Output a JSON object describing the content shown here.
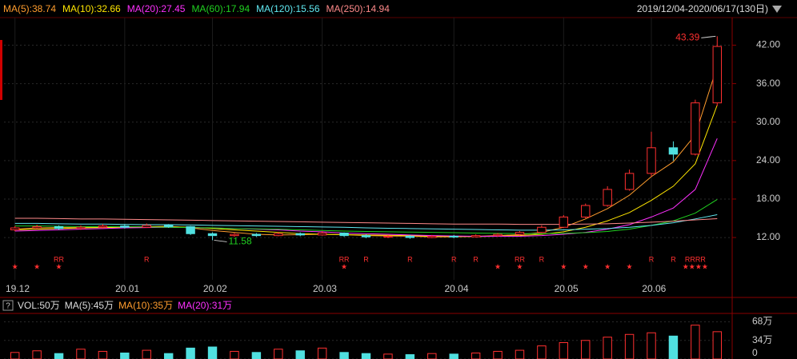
{
  "header": {
    "range": "2019/12/04-2020/06/17(130日)",
    "volume_legend": [
      "VOL:50万",
      "MA(5):45万",
      "MA(10):35万",
      "MA(20):31万"
    ]
  },
  "chart_data": {
    "type": "candlestick",
    "categories": [
      "19.12",
      null,
      null,
      null,
      null,
      "20.01",
      null,
      null,
      null,
      "20.02",
      null,
      null,
      null,
      null,
      "20.03",
      null,
      null,
      null,
      null,
      null,
      "20.04",
      null,
      null,
      null,
      null,
      "20.05",
      null,
      null,
      null,
      "20.06",
      null,
      null,
      null
    ],
    "open": [
      13.2,
      13.5,
      13.7,
      13.4,
      13.6,
      13.8,
      13.6,
      13.9,
      13.7,
      12.6,
      12.3,
      12.5,
      12.3,
      12.6,
      12.4,
      12.7,
      12.3,
      12.1,
      12.2,
      12.0,
      12.2,
      12.1,
      12.3,
      12.5,
      12.8,
      13.6,
      15.2,
      17.0,
      19.5,
      22.0,
      26.0,
      25.0,
      33.0
    ],
    "close": [
      13.5,
      13.7,
      13.4,
      13.6,
      13.8,
      13.6,
      13.9,
      13.7,
      12.6,
      12.3,
      12.5,
      12.3,
      12.6,
      12.4,
      12.7,
      12.3,
      12.1,
      12.2,
      12.0,
      12.2,
      12.1,
      12.3,
      12.5,
      12.8,
      13.6,
      15.2,
      17.0,
      19.5,
      22.0,
      26.0,
      25.0,
      33.0,
      41.8
    ],
    "high": [
      13.8,
      14.0,
      13.9,
      13.9,
      14.1,
      14.0,
      14.2,
      14.1,
      13.8,
      12.8,
      12.7,
      12.7,
      12.9,
      12.8,
      13.0,
      12.8,
      12.5,
      12.4,
      12.4,
      12.4,
      12.4,
      12.5,
      12.7,
      13.0,
      13.9,
      15.5,
      17.3,
      20.0,
      22.6,
      28.5,
      27.0,
      33.5,
      43.39
    ],
    "low": [
      13.0,
      13.3,
      13.2,
      13.2,
      13.4,
      13.4,
      13.5,
      13.5,
      12.4,
      11.58,
      12.1,
      12.1,
      12.2,
      12.2,
      12.3,
      12.1,
      11.9,
      11.9,
      11.8,
      11.9,
      11.9,
      12.0,
      12.1,
      12.3,
      12.7,
      13.5,
      15.0,
      16.8,
      19.3,
      21.5,
      24.0,
      24.8,
      32.5
    ],
    "up_color": "#ff3030",
    "down_color": "#50e0e0",
    "series": [
      {
        "name": "MA(5):38.74",
        "color": "#ff9d2e",
        "values": [
          13.3,
          13.5,
          13.55,
          13.55,
          13.6,
          13.65,
          13.7,
          13.75,
          13.5,
          13.1,
          12.8,
          12.5,
          12.4,
          12.45,
          12.5,
          12.45,
          12.3,
          12.25,
          12.2,
          12.1,
          12.1,
          12.2,
          12.3,
          12.45,
          12.8,
          13.6,
          14.9,
          16.5,
          18.6,
          21.5,
          23.8,
          28,
          38.74
        ]
      },
      {
        "name": "MA(10):32.66",
        "color": "#ffe600",
        "values": [
          13.2,
          13.3,
          13.4,
          13.5,
          13.55,
          13.6,
          13.65,
          13.7,
          13.6,
          13.4,
          13.2,
          13.0,
          12.8,
          12.6,
          12.5,
          12.45,
          12.4,
          12.35,
          12.3,
          12.2,
          12.15,
          12.15,
          12.2,
          12.3,
          12.5,
          12.9,
          13.6,
          14.6,
          15.9,
          17.8,
          20.0,
          23.5,
          32.66
        ]
      },
      {
        "name": "MA(20):27.45",
        "color": "#ff30ff",
        "values": [
          13.0,
          13.1,
          13.2,
          13.3,
          13.4,
          13.5,
          13.55,
          13.6,
          13.55,
          13.5,
          13.4,
          13.3,
          13.2,
          13.0,
          12.9,
          12.7,
          12.6,
          12.5,
          12.4,
          12.3,
          12.25,
          12.2,
          12.2,
          12.2,
          12.3,
          12.5,
          12.8,
          13.3,
          14.0,
          15.2,
          16.6,
          19.5,
          27.45
        ]
      },
      {
        "name": "MA(60):17.94",
        "color": "#20d020",
        "values": [
          13.8,
          13.8,
          13.75,
          13.7,
          13.7,
          13.7,
          13.65,
          13.6,
          13.55,
          13.5,
          13.4,
          13.35,
          13.3,
          13.2,
          13.1,
          13.0,
          12.95,
          12.9,
          12.85,
          12.8,
          12.75,
          12.7,
          12.65,
          12.6,
          12.6,
          12.65,
          12.75,
          12.95,
          13.3,
          13.9,
          14.6,
          15.8,
          17.94
        ]
      },
      {
        "name": "MA(120):15.56",
        "color": "#60e8f0",
        "values": [
          14.2,
          14.2,
          14.15,
          14.1,
          14.1,
          14.05,
          14.0,
          14.0,
          13.95,
          13.9,
          13.85,
          13.8,
          13.75,
          13.7,
          13.65,
          13.6,
          13.5,
          13.45,
          13.4,
          13.35,
          13.3,
          13.25,
          13.2,
          13.15,
          13.15,
          13.2,
          13.3,
          13.4,
          13.6,
          13.9,
          14.3,
          14.9,
          15.56
        ]
      },
      {
        "name": "MA(250):14.94",
        "color": "#ff8a8a",
        "values": [
          15.0,
          15.0,
          14.95,
          14.9,
          14.9,
          14.85,
          14.8,
          14.75,
          14.7,
          14.65,
          14.6,
          14.55,
          14.5,
          14.45,
          14.4,
          14.35,
          14.3,
          14.25,
          14.2,
          14.15,
          14.1,
          14.1,
          14.1,
          14.05,
          14.05,
          14.05,
          14.1,
          14.15,
          14.25,
          14.4,
          14.55,
          14.75,
          14.94
        ]
      }
    ],
    "ylim": [
      5.4,
      46.3
    ],
    "yticks": [
      {
        "value": 12,
        "label": "12.00"
      },
      {
        "value": 18,
        "label": "18.00"
      },
      {
        "value": 24,
        "label": "24.00"
      },
      {
        "value": 30,
        "label": "30.00"
      },
      {
        "value": 36,
        "label": "36.00"
      },
      {
        "value": 42,
        "label": "42.00"
      }
    ],
    "r_flags": [
      null,
      null,
      "RR",
      null,
      null,
      null,
      "R",
      null,
      null,
      null,
      null,
      null,
      null,
      null,
      null,
      "RR",
      "R",
      null,
      "R",
      null,
      "R",
      "R",
      null,
      "RR",
      "R",
      null,
      null,
      null,
      null,
      "R",
      "R",
      "RRRR",
      null
    ],
    "star_flags": [
      "★",
      "★",
      "★",
      null,
      null,
      null,
      null,
      null,
      null,
      null,
      null,
      null,
      null,
      null,
      null,
      "★",
      null,
      null,
      null,
      null,
      null,
      null,
      "★",
      "★",
      null,
      "★",
      "★",
      "★",
      "★",
      null,
      null,
      "★★★★",
      null
    ],
    "volume": {
      "values": [
        12,
        15,
        10,
        18,
        14,
        11,
        16,
        10,
        20,
        22,
        14,
        12,
        18,
        15,
        20,
        12,
        10,
        9,
        8,
        10,
        9,
        11,
        14,
        16,
        24,
        30,
        34,
        40,
        45,
        48,
        42,
        62,
        50
      ],
      "ylim": [
        0,
        82
      ],
      "yticks": [
        0,
        {
          "value": 34,
          "label": "34万"
        },
        {
          "value": 68,
          "label": "68万"
        }
      ]
    }
  }
}
